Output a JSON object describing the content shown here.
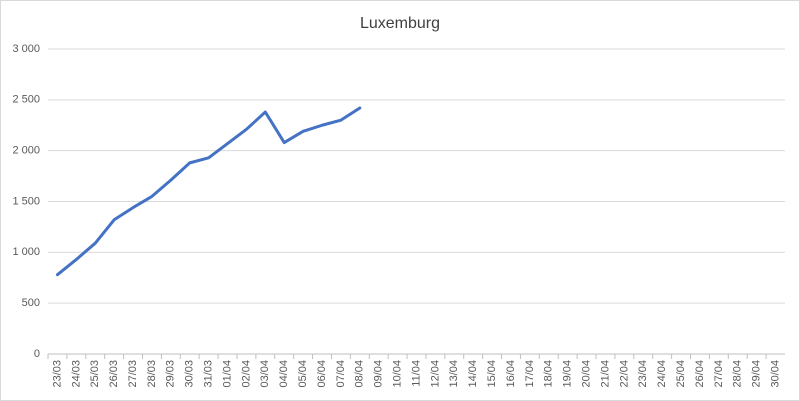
{
  "chart_data": {
    "type": "line",
    "title": "Luxemburg",
    "categories": [
      "23/03",
      "24/03",
      "25/03",
      "26/03",
      "27/03",
      "28/03",
      "29/03",
      "30/03",
      "31/03",
      "01/04",
      "02/04",
      "03/04",
      "04/04",
      "05/04",
      "06/04",
      "07/04",
      "08/04",
      "09/04",
      "10/04",
      "11/04",
      "12/04",
      "13/04",
      "14/04",
      "15/04",
      "16/04",
      "17/04",
      "18/04",
      "19/04",
      "20/04",
      "21/04",
      "22/04",
      "23/04",
      "24/04",
      "25/04",
      "26/04",
      "27/04",
      "28/04",
      "29/04",
      "30/04"
    ],
    "series": [
      {
        "color": "#4472c4",
        "values": [
          780,
          930,
          1090,
          1320,
          1440,
          1550,
          1710,
          1880,
          1930,
          2070,
          2210,
          2380,
          2080,
          2190,
          2250,
          2300,
          2420,
          null,
          null,
          null,
          null,
          null,
          null,
          null,
          null,
          null,
          null,
          null,
          null,
          null,
          null,
          null,
          null,
          null,
          null,
          null,
          null,
          null,
          null
        ]
      }
    ],
    "ylim": [
      0,
      3000
    ],
    "yticks": [
      0,
      500,
      {
        "value": 1000,
        "label": "1 000"
      },
      {
        "value": 1500,
        "label": "1 500"
      },
      {
        "value": 2000,
        "label": "2 000"
      },
      {
        "value": 2500,
        "label": "2 500"
      },
      {
        "value": 3000,
        "label": "3 000"
      }
    ],
    "grid": true
  }
}
